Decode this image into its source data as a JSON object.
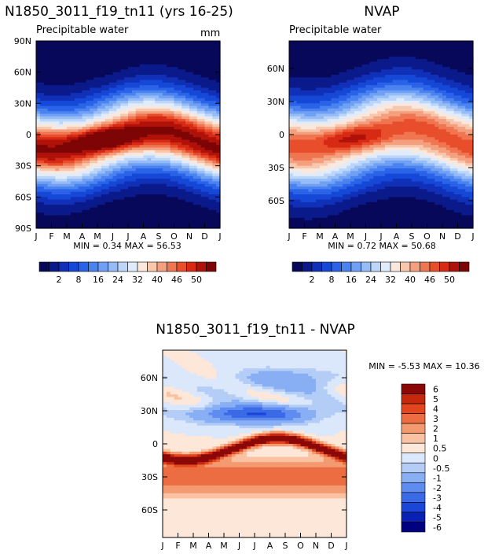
{
  "palettes": {
    "absolute": [
      "#08085a",
      "#0b1a8a",
      "#1030b8",
      "#1648d8",
      "#2a63e8",
      "#4a82f0",
      "#6fa0f4",
      "#95bcf7",
      "#bcd6fa",
      "#e0ecfb",
      "#fbe8dc",
      "#f8c8ae",
      "#f4a07e",
      "#ef7651",
      "#e84e2c",
      "#d62a14",
      "#b0120a",
      "#7e0505"
    ],
    "difference": [
      "#000080",
      "#0a20b4",
      "#1c46d8",
      "#3a6ae6",
      "#5e8cf0",
      "#88aef4",
      "#b4cdf7",
      "#dbe7fb",
      "#fde7d8",
      "#f9c3a3",
      "#f49a70",
      "#ed6d42",
      "#e3461e",
      "#c6280e",
      "#8b0808"
    ]
  },
  "chart_data": [
    {
      "id": "model",
      "type": "heatmap",
      "title": "N1850_3011_f19_tn11 (yrs 16-25)",
      "subtitle_left": "Precipitable water",
      "subtitle_right": "mm",
      "x_ticks": [
        "J",
        "F",
        "M",
        "A",
        "M",
        "J",
        "J",
        "A",
        "S",
        "O",
        "N",
        "D",
        "J"
      ],
      "y_ticks": [
        "90N",
        "60N",
        "30N",
        "0",
        "30S",
        "60S",
        "90S"
      ],
      "y_range": [
        90,
        -90
      ],
      "field": {
        "kind": "absolute",
        "max": 56.53,
        "min": 0.34,
        "amp": 15,
        "width": 24,
        "shift": 0
      },
      "min_max_text": "MIN =    0.34 MAX =   56.53",
      "colorbar_labels": [
        "2",
        "8",
        "16",
        "24",
        "32",
        "40",
        "46",
        "50"
      ]
    },
    {
      "id": "obs",
      "type": "heatmap",
      "title": "NVAP",
      "subtitle_left": "Precipitable water",
      "subtitle_right": "",
      "x_ticks": [
        "J",
        "F",
        "M",
        "A",
        "M",
        "J",
        "J",
        "A",
        "S",
        "O",
        "N",
        "D",
        "J"
      ],
      "y_ticks": [
        "60N",
        "30N",
        "0",
        "30S",
        "60S"
      ],
      "y_range": [
        85,
        -85
      ],
      "field": {
        "kind": "absolute",
        "max": 50.68,
        "min": 0.72,
        "amp": 15,
        "width": 25,
        "shift": 2
      },
      "min_max_text": "MIN =    0.72 MAX =   50.68",
      "colorbar_labels": [
        "2",
        "8",
        "16",
        "24",
        "32",
        "40",
        "46",
        "50"
      ]
    },
    {
      "id": "diff",
      "type": "heatmap",
      "title": "N1850_3011_f19_tn11 - NVAP",
      "subtitle_left": "",
      "subtitle_right": "",
      "x_ticks": [
        "J",
        "F",
        "M",
        "A",
        "M",
        "J",
        "J",
        "A",
        "S",
        "O",
        "N",
        "D",
        "J"
      ],
      "y_ticks": [
        "60N",
        "30N",
        "0",
        "30S",
        "60S"
      ],
      "y_range": [
        85,
        -85
      ],
      "field": {
        "kind": "difference",
        "max": 10.36,
        "min": -5.53
      },
      "min_max_text": "MIN =    -5.53 MAX =   10.36",
      "colorbar_labels": [
        "6",
        "5",
        "4",
        "3",
        "2",
        "1",
        "0.5",
        "0",
        "-0.5",
        "-1",
        "-2",
        "-3",
        "-4",
        "-5",
        "-6"
      ]
    }
  ]
}
